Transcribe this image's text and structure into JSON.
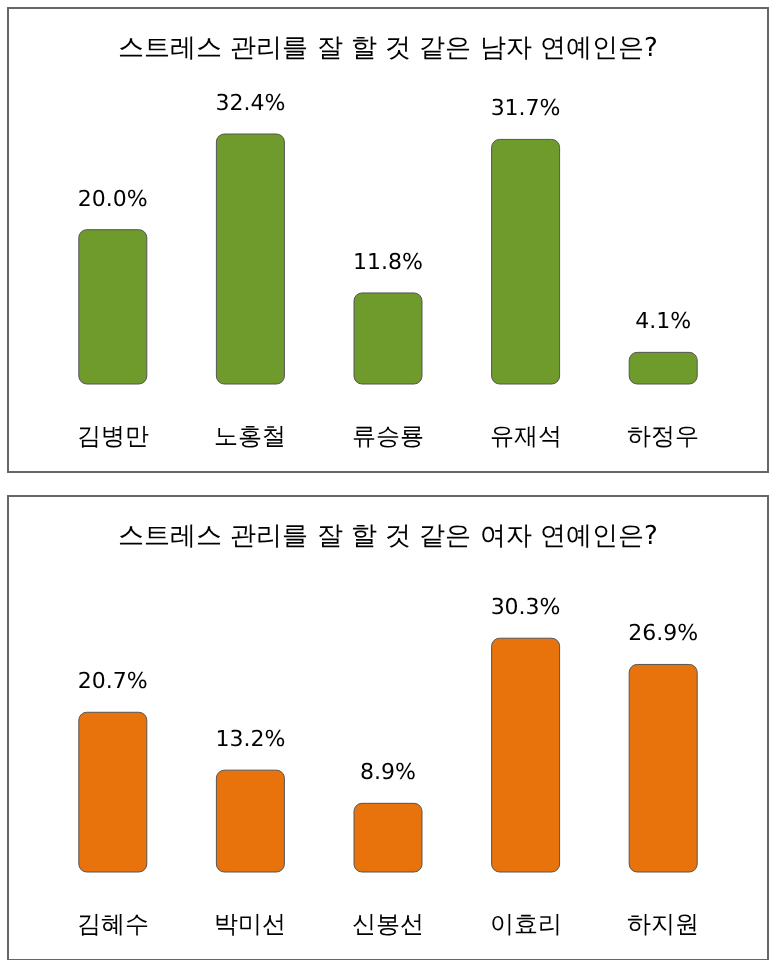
{
  "chart_data": [
    {
      "type": "bar",
      "title": "스트레스 관리를 잘 할 것 같은 남자 연예인은?",
      "categories": [
        "김병만",
        "노홍철",
        "류승룡",
        "유재석",
        "하정우"
      ],
      "values": [
        20.0,
        32.4,
        11.8,
        31.7,
        4.1
      ],
      "value_labels": [
        "20.0%",
        "32.4%",
        "11.8%",
        "31.7%",
        "4.1%"
      ],
      "color": "#6f9a2c"
    },
    {
      "type": "bar",
      "title": "스트레스 관리를 잘 할 것 같은 여자 연예인은?",
      "categories": [
        "김혜수",
        "박미선",
        "신봉선",
        "이효리",
        "하지원"
      ],
      "values": [
        20.7,
        13.2,
        8.9,
        30.3,
        26.9
      ],
      "value_labels": [
        "20.7%",
        "13.2%",
        "8.9%",
        "30.3%",
        "26.9%"
      ],
      "color": "#e8730c"
    }
  ]
}
